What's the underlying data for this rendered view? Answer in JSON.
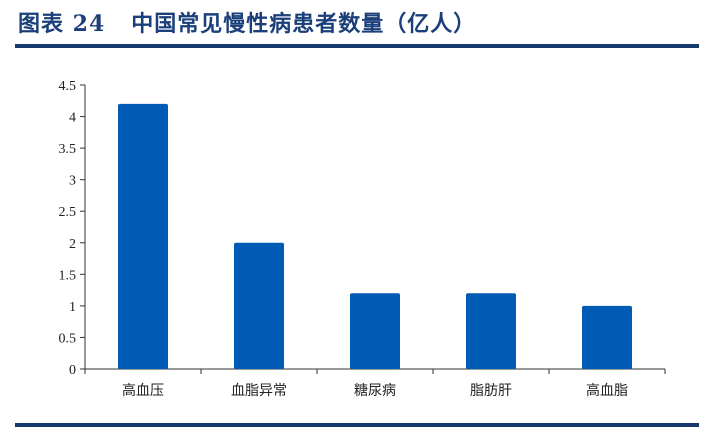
{
  "header": {
    "title": "图表 24   中国常见慢性病患者数量（亿人）"
  },
  "colors": {
    "bar": "#005bb5",
    "rule": "#163a6e",
    "title": "#1b3f7a"
  },
  "chart_data": {
    "type": "bar",
    "title": "中国常见慢性病患者数量（亿人）",
    "categories": [
      "高血压",
      "血脂异常",
      "糖尿病",
      "脂肪肝",
      "高血脂"
    ],
    "values": [
      4.2,
      2.0,
      1.2,
      1.2,
      1.0
    ],
    "xlabel": "",
    "ylabel": "",
    "ylim": [
      0,
      4.5
    ],
    "yticks": [
      "0",
      "0.5",
      "1",
      "1.5",
      "2",
      "2.5",
      "3",
      "3.5",
      "4",
      "4.5"
    ],
    "grid": false,
    "legend": null
  }
}
